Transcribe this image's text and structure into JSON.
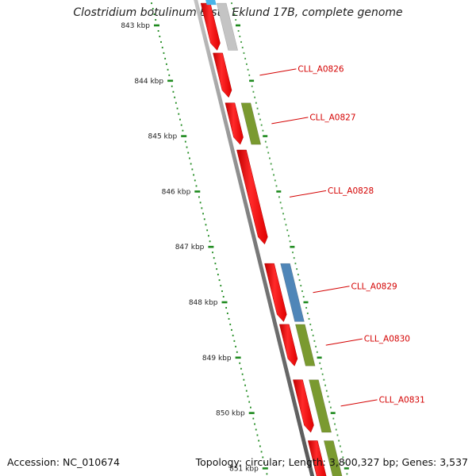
{
  "title": "Clostridium botulinum B str. Eklund 17B, complete genome",
  "footer": {
    "accession": "Accession: NC_010674",
    "stats": "Topology: circular; Length: 3,800,327 bp; Genes: 3,537"
  },
  "colors": {
    "backbone": "#8a8a8a",
    "forward_gene": "#ff1a1a",
    "cog_olive": "#7a9a30",
    "cog_blue": "#4f86b8",
    "cog_light_blue": "#49b4e8",
    "cog_grey": "#c4c4c4",
    "tick": "#1e8a1e",
    "label": "#d40000"
  },
  "scale": {
    "unit": "kbp",
    "labels": [
      "843 kbp",
      "844 kbp",
      "845 kbp",
      "846 kbp",
      "847 kbp",
      "848 kbp",
      "849 kbp",
      "850 kbp",
      "851 kbp"
    ]
  },
  "genes": [
    {
      "name": "",
      "start_kbp": 842.6,
      "end_kbp": 843.45,
      "strand": "+",
      "cog_color": "#c4c4c4"
    },
    {
      "name": "CLL_A0826",
      "start_kbp": 843.5,
      "end_kbp": 844.3,
      "strand": "+",
      "cog_color": ""
    },
    {
      "name": "CLL_A0827",
      "start_kbp": 844.4,
      "end_kbp": 845.15,
      "strand": "+",
      "cog_color": "#7a9a30"
    },
    {
      "name": "CLL_A0828",
      "start_kbp": 845.25,
      "end_kbp": 846.95,
      "strand": "+",
      "cog_color": ""
    },
    {
      "name": "CLL_A0829",
      "start_kbp": 847.3,
      "end_kbp": 848.35,
      "strand": "+",
      "cog_color": "#4f86b8"
    },
    {
      "name": "CLL_A0830",
      "start_kbp": 848.4,
      "end_kbp": 849.15,
      "strand": "+",
      "cog_color": "#7a9a30"
    },
    {
      "name": "CLL_A0831",
      "start_kbp": 849.4,
      "end_kbp": 850.35,
      "strand": "+",
      "cog_color": "#7a9a30"
    },
    {
      "name": "",
      "start_kbp": 850.5,
      "end_kbp": 851.3,
      "strand": "+",
      "cog_color": "#7a9a30"
    }
  ]
}
